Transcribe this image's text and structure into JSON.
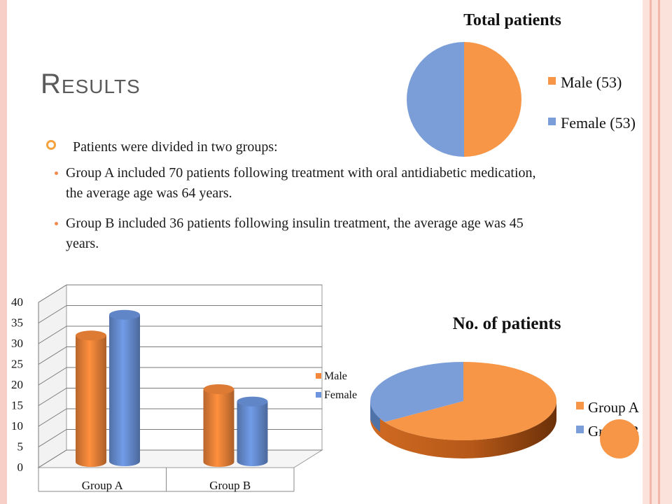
{
  "slide": {
    "title": "Results",
    "bullets": [
      "Patients were divided in two groups:",
      "Group A included 70 patients following treatment with oral antidiabetic medication, the average age was 64 years.",
      "Group B included 36 patients following insulin treatment, the average age was 45 years."
    ]
  },
  "chart_data": [
    {
      "type": "pie",
      "title": "Total patients",
      "categories": [
        "Male (53)",
        "Female (53)"
      ],
      "values": [
        53,
        53
      ],
      "colors": [
        "#f79646",
        "#7b9ed9"
      ],
      "legend": "right"
    },
    {
      "type": "bar",
      "title": "",
      "categories": [
        "Group A",
        "Group B"
      ],
      "series": [
        {
          "name": "Male",
          "values": [
            33,
            20
          ],
          "color": "#f5883a"
        },
        {
          "name": "Female",
          "values": [
            37,
            16
          ],
          "color": "#6c95dd"
        }
      ],
      "yticks": [
        "0",
        "5",
        "10",
        "15",
        "20",
        "25",
        "30",
        "35",
        "40"
      ],
      "ylim": [
        0,
        40
      ],
      "grid": true,
      "legend": "right"
    },
    {
      "type": "pie",
      "title": "No. of patients",
      "categories": [
        "Group A",
        "Group B"
      ],
      "values": [
        70,
        36
      ],
      "colors": [
        "#f79646",
        "#7b9ed9"
      ],
      "legend": "right"
    }
  ]
}
